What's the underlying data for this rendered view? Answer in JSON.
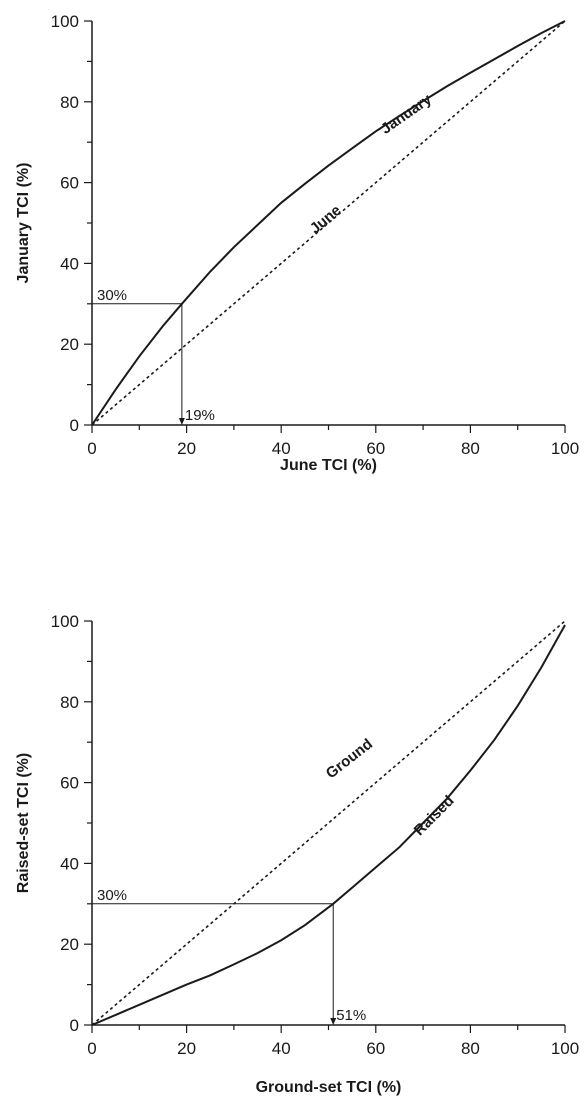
{
  "chart_data": [
    {
      "type": "line",
      "xlabel": "June TCI (%)",
      "ylabel": "January TCI (%)",
      "xlim": [
        0,
        100
      ],
      "ylim": [
        0,
        100
      ],
      "xticks": [
        0,
        20,
        40,
        60,
        80,
        100
      ],
      "yticks": [
        0,
        20,
        40,
        60,
        80,
        100
      ],
      "grid": false,
      "series": [
        {
          "name": "January",
          "style": "solid",
          "x": [
            0,
            5,
            10,
            15,
            19,
            25,
            30,
            35,
            40,
            45,
            50,
            55,
            60,
            65,
            70,
            75,
            80,
            85,
            90,
            95,
            100
          ],
          "y": [
            0,
            8.8,
            17,
            24.5,
            30,
            38,
            44,
            49.5,
            55,
            59.7,
            64.2,
            68.5,
            72.7,
            76.5,
            80.2,
            83.8,
            87.2,
            90.5,
            93.8,
            97,
            100
          ]
        },
        {
          "name": "June",
          "style": "dotted",
          "x": [
            0,
            100
          ],
          "y": [
            0,
            100
          ]
        }
      ],
      "annotations": [
        {
          "text": "30%",
          "x": 19,
          "y": 30
        },
        {
          "text": "19%",
          "x": 19,
          "y": 0
        }
      ]
    },
    {
      "type": "line",
      "xlabel": "Ground-set TCI (%)",
      "ylabel": "Raised-set TCI (%)",
      "xlim": [
        0,
        100
      ],
      "ylim": [
        0,
        100
      ],
      "xticks": [
        0,
        20,
        40,
        60,
        80,
        100
      ],
      "yticks": [
        0,
        20,
        40,
        60,
        80,
        100
      ],
      "grid": false,
      "series": [
        {
          "name": "Raised",
          "style": "solid",
          "x": [
            0,
            5,
            10,
            15,
            20,
            25,
            30,
            35,
            40,
            45,
            51,
            55,
            60,
            65,
            70,
            75,
            80,
            85,
            90,
            95,
            100
          ],
          "y": [
            0,
            2.5,
            5,
            7.5,
            10,
            12.3,
            15,
            17.8,
            21,
            24.7,
            30,
            34,
            39,
            44,
            50,
            56,
            63,
            70.5,
            79,
            88.5,
            99
          ]
        },
        {
          "name": "Ground",
          "style": "dotted",
          "x": [
            0,
            100
          ],
          "y": [
            0,
            100
          ]
        }
      ],
      "annotations": [
        {
          "text": "30%",
          "x": 51,
          "y": 30
        },
        {
          "text": "51%",
          "x": 51,
          "y": 0
        }
      ]
    }
  ]
}
